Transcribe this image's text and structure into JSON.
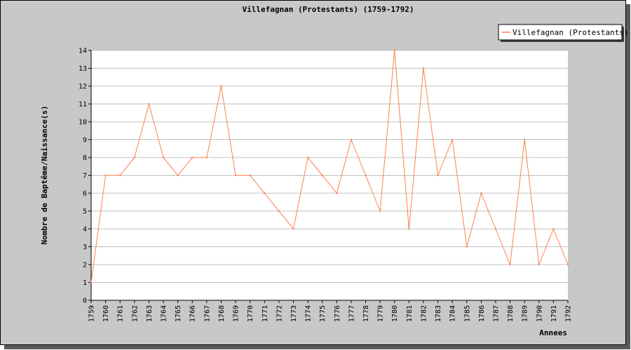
{
  "chart_data": {
    "type": "line",
    "title": "Villefagnan (Protestants) (1759-1792)",
    "xlabel": "Annees",
    "ylabel": "Nombre de Baptême/Naissance(s)",
    "ylim": [
      0,
      14
    ],
    "y_ticks": [
      0,
      1,
      2,
      3,
      4,
      5,
      6,
      7,
      8,
      9,
      10,
      11,
      12,
      13,
      14
    ],
    "grid": true,
    "legend_position": "top-right",
    "series_color": "#ff7f50",
    "categories": [
      "1759",
      "1760",
      "1761",
      "1762",
      "1763",
      "1764",
      "1765",
      "1766",
      "1767",
      "1768",
      "1769",
      "1770",
      "1771",
      "1772",
      "1773",
      "1774",
      "1775",
      "1776",
      "1777",
      "1778",
      "1779",
      "1780",
      "1781",
      "1782",
      "1783",
      "1784",
      "1785",
      "1786",
      "1787",
      "1788",
      "1789",
      "1790",
      "1791",
      "1792"
    ],
    "series": [
      {
        "name": "Villefagnan (Protestants)",
        "values": [
          1,
          7,
          7,
          8,
          11,
          8,
          7,
          8,
          8,
          12,
          7,
          7,
          6,
          5,
          4,
          8,
          7,
          6,
          9,
          7,
          5,
          14,
          4,
          13,
          7,
          9,
          3,
          6,
          4,
          2,
          9,
          2,
          4,
          2
        ]
      }
    ]
  }
}
